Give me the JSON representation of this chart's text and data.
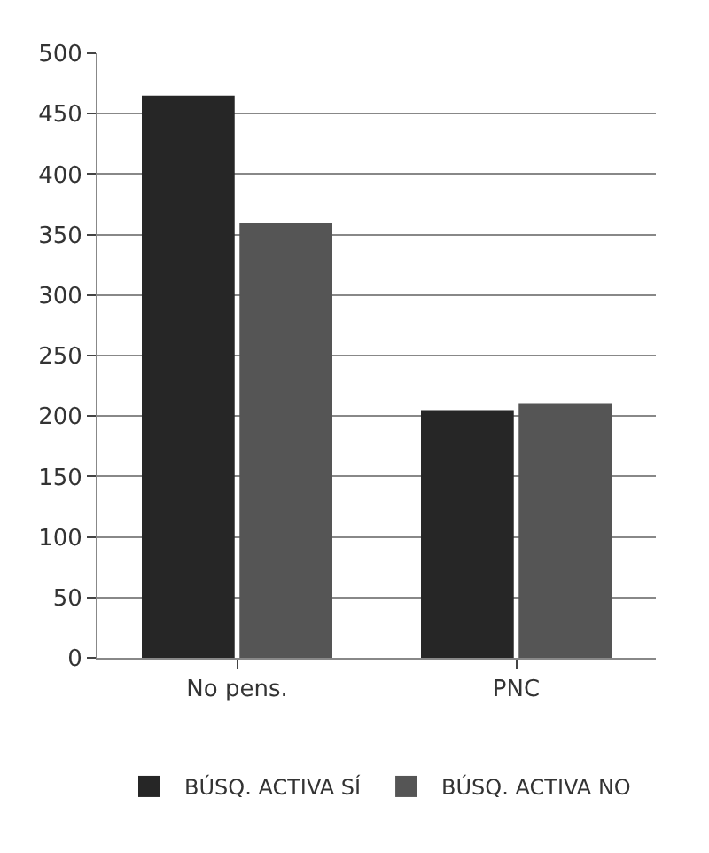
{
  "chart_data": {
    "type": "bar",
    "categories": [
      "No pens.",
      "PNC"
    ],
    "series": [
      {
        "name": "BÚSQ. ACTIVA SÍ",
        "color": "#262626",
        "values": [
          465,
          205
        ]
      },
      {
        "name": "BÚSQ. ACTIVA NO",
        "color": "#555555",
        "values": [
          360,
          210
        ]
      }
    ],
    "ylim": [
      0,
      500
    ],
    "yticks": [
      0,
      50,
      100,
      150,
      200,
      250,
      300,
      350,
      400,
      450,
      500
    ],
    "grid": "y",
    "legend": "bottom"
  }
}
